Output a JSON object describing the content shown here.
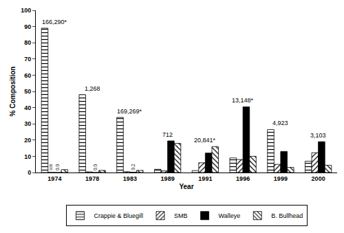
{
  "chart_data": {
    "type": "bar",
    "x_label": "Year",
    "y_label": "% Composition",
    "categories": [
      "1974",
      "1978",
      "1983",
      "1989",
      "1991",
      "1996",
      "1999",
      "2000"
    ],
    "series": [
      {
        "name": "Crappie & Bluegill",
        "color": "#000000",
        "marker": "horizontal",
        "values": [
          89,
          48,
          34,
          2,
          1.2,
          9,
          26.5,
          7
        ]
      },
      {
        "name": "SMB",
        "color": "#000000",
        "marker": "diagonal",
        "values": [
          0.05,
          0.4,
          0.5,
          1,
          6,
          8,
          5,
          12.2
        ],
        "value_labels": [
          "0.05",
          null,
          null,
          null,
          null,
          null,
          null,
          null
        ]
      },
      {
        "name": "Walleye",
        "color": "#000000",
        "marker": "solid",
        "values": [
          0,
          0,
          0.2,
          19.5,
          12,
          40.5,
          13,
          19
        ],
        "value_labels": [
          "0.0",
          "0.0",
          "0.2",
          null,
          null,
          null,
          null,
          null
        ]
      },
      {
        "name": "B. Bullhead",
        "color": "#000000",
        "marker": "backdiagonal",
        "values": [
          1.8,
          1.3,
          1.3,
          18,
          16,
          10,
          3.2,
          4.5
        ]
      }
    ],
    "annotations": [
      {
        "category": "1974",
        "text": "166,290*"
      },
      {
        "category": "1978",
        "text": "1,268"
      },
      {
        "category": "1983",
        "text": "169,269*"
      },
      {
        "category": "1989",
        "text": "712"
      },
      {
        "category": "1991",
        "text": "20,841*"
      },
      {
        "category": "1996",
        "text": "13,148*"
      },
      {
        "category": "1999",
        "text": "4,923"
      },
      {
        "category": "2000",
        "text": "3,103"
      }
    ],
    "ylim": [
      0,
      100
    ],
    "yticks": [
      0,
      10,
      20,
      30,
      40,
      50,
      60,
      70,
      80,
      90,
      100
    ],
    "grid": false,
    "legend": "bottom"
  }
}
